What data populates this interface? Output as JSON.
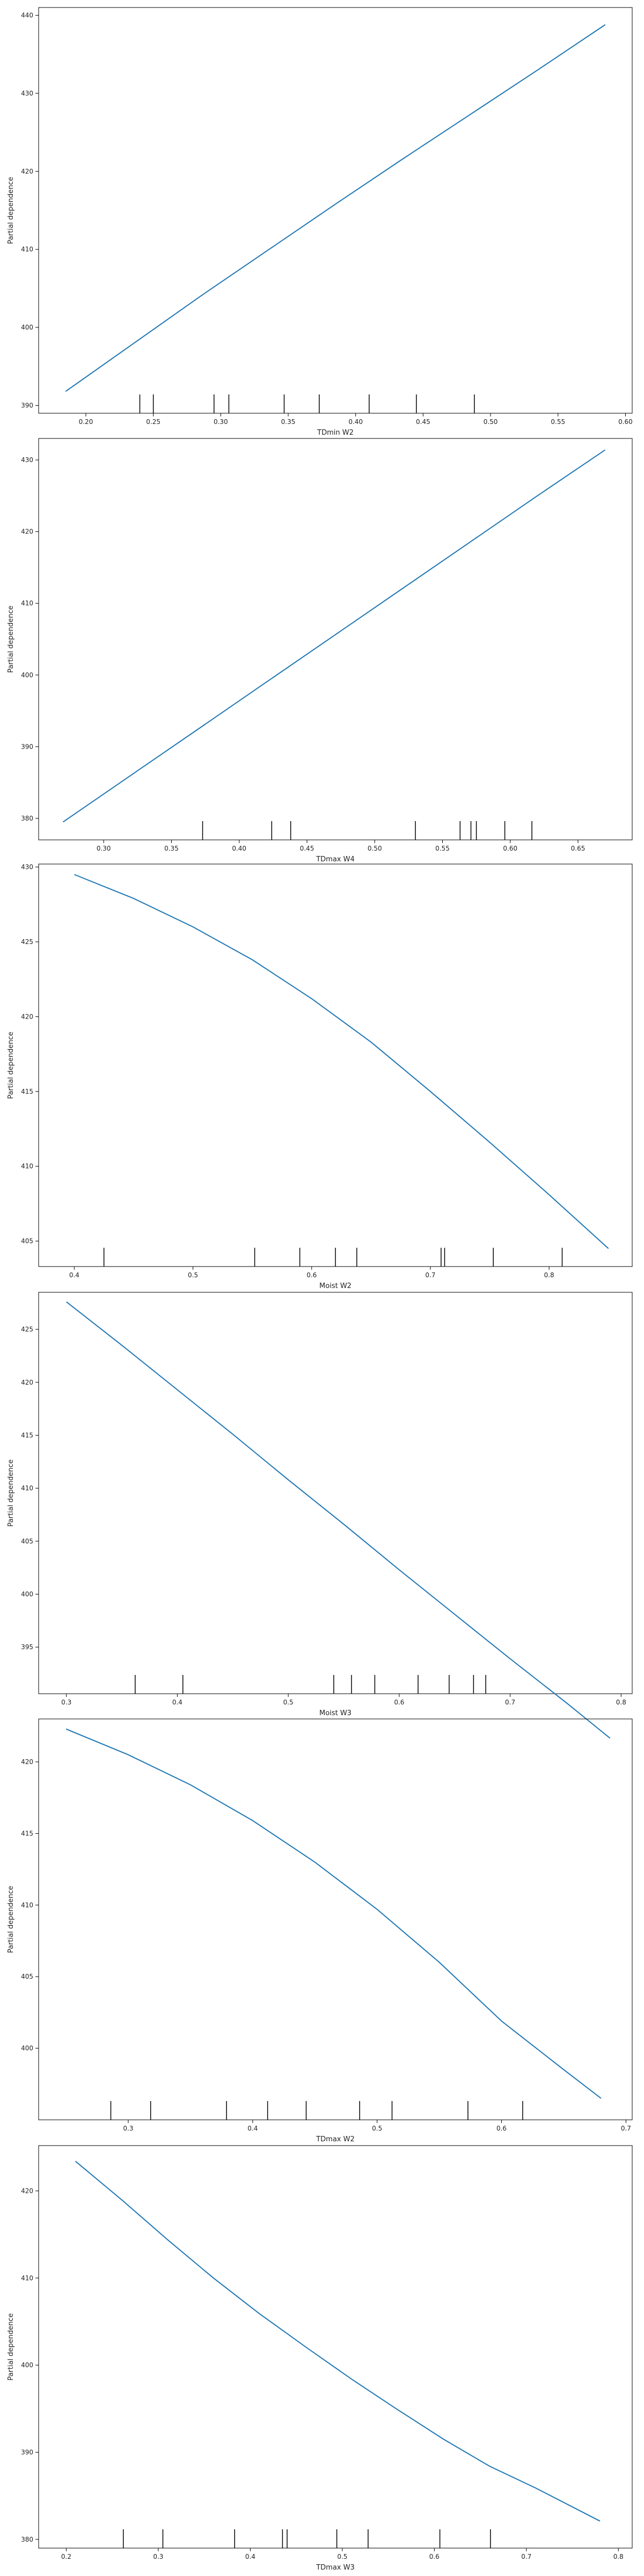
{
  "chart_data": [
    {
      "type": "line",
      "xlabel": "TDmin W2",
      "ylabel": "Partial dependence",
      "xlim": [
        0.165,
        0.605
      ],
      "ylim": [
        389,
        441
      ],
      "xticks": [
        0.2,
        0.25,
        0.3,
        0.35,
        0.4,
        0.45,
        0.5,
        0.55,
        0.6
      ],
      "yticks": [
        390,
        400,
        410,
        420,
        430,
        440
      ],
      "series": [
        {
          "x": [
            0.185,
            0.235,
            0.285,
            0.335,
            0.385,
            0.435,
            0.485,
            0.535,
            0.585
          ],
          "y": [
            391.8,
            397.9,
            404.0,
            409.9,
            415.8,
            421.6,
            427.3,
            433.0,
            438.8
          ]
        }
      ],
      "rug": [
        0.24,
        0.25,
        0.295,
        0.306,
        0.347,
        0.373,
        0.41,
        0.445,
        0.488
      ]
    },
    {
      "type": "line",
      "xlabel": "TDmax W4",
      "ylabel": "Partial dependence",
      "xlim": [
        0.252,
        0.69
      ],
      "ylim": [
        377,
        433
      ],
      "xticks": [
        0.3,
        0.35,
        0.4,
        0.45,
        0.5,
        0.55,
        0.6,
        0.65
      ],
      "yticks": [
        380,
        390,
        400,
        410,
        420,
        430
      ],
      "series": [
        {
          "x": [
            0.27,
            0.32,
            0.37,
            0.42,
            0.47,
            0.52,
            0.57,
            0.62,
            0.67
          ],
          "y": [
            379.5,
            386.0,
            392.5,
            399.0,
            405.5,
            412.0,
            418.5,
            425.0,
            431.4
          ]
        }
      ],
      "rug": [
        0.373,
        0.424,
        0.438,
        0.53,
        0.563,
        0.571,
        0.575,
        0.596,
        0.616
      ]
    },
    {
      "type": "line",
      "xlabel": "Moist W2",
      "ylabel": "Partial dependence",
      "xlim": [
        0.37,
        0.87
      ],
      "ylim": [
        403.3,
        430.2
      ],
      "xticks": [
        0.4,
        0.5,
        0.6,
        0.7,
        0.8
      ],
      "yticks": [
        405,
        410,
        415,
        420,
        425,
        430
      ],
      "series": [
        {
          "x": [
            0.4,
            0.45,
            0.5,
            0.55,
            0.6,
            0.65,
            0.7,
            0.75,
            0.8,
            0.85
          ],
          "y": [
            429.5,
            427.9,
            426.0,
            423.8,
            421.2,
            418.3,
            415.0,
            411.6,
            408.1,
            404.5
          ]
        }
      ],
      "rug": [
        0.425,
        0.552,
        0.59,
        0.62,
        0.638,
        0.709,
        0.712,
        0.753,
        0.811
      ]
    },
    {
      "type": "line",
      "xlabel": "Moist W3",
      "ylabel": "Partial dependence",
      "xlim": [
        0.275,
        0.81
      ],
      "ylim": [
        390.6,
        428.5
      ],
      "xticks": [
        0.3,
        0.4,
        0.5,
        0.6,
        0.7,
        0.8
      ],
      "yticks": [
        395,
        400,
        405,
        410,
        415,
        420,
        425
      ],
      "series": [
        {
          "x": [
            0.3,
            0.35,
            0.4,
            0.45,
            0.5,
            0.55,
            0.6,
            0.65,
            0.7,
            0.75,
            0.79
          ],
          "y": [
            427.6,
            423.5,
            419.3,
            415.1,
            410.8,
            406.6,
            402.3,
            398.1,
            393.9,
            389.8,
            386.4
          ]
        }
      ],
      "rug": [
        0.362,
        0.405,
        0.541,
        0.557,
        0.578,
        0.617,
        0.645,
        0.667,
        0.678
      ]
    },
    {
      "type": "line",
      "xlabel": "TDmax W2",
      "ylabel": "Partial dependence",
      "xlim": [
        0.228,
        0.705
      ],
      "ylim": [
        395,
        423
      ],
      "xticks": [
        0.3,
        0.4,
        0.5,
        0.6,
        0.7
      ],
      "yticks": [
        400,
        405,
        410,
        415,
        420
      ],
      "series": [
        {
          "x": [
            0.25,
            0.3,
            0.35,
            0.4,
            0.45,
            0.5,
            0.55,
            0.6,
            0.65,
            0.68
          ],
          "y": [
            422.3,
            420.5,
            418.4,
            415.9,
            413.0,
            409.7,
            406.0,
            401.9,
            398.5,
            396.5
          ]
        }
      ],
      "rug": [
        0.286,
        0.318,
        0.379,
        0.412,
        0.443,
        0.486,
        0.512,
        0.573,
        0.617
      ]
    },
    {
      "type": "line",
      "xlabel": "TDmax W3",
      "ylabel": "Partial dependence",
      "xlim": [
        0.17,
        0.815
      ],
      "ylim": [
        379,
        425.2
      ],
      "xticks": [
        0.2,
        0.3,
        0.4,
        0.5,
        0.6,
        0.7,
        0.8
      ],
      "yticks": [
        380,
        390,
        400,
        410,
        420
      ],
      "series": [
        {
          "x": [
            0.21,
            0.26,
            0.31,
            0.36,
            0.41,
            0.46,
            0.51,
            0.56,
            0.61,
            0.66,
            0.71,
            0.78
          ],
          "y": [
            423.4,
            419.0,
            414.4,
            410.0,
            405.9,
            402.1,
            398.4,
            394.9,
            391.5,
            388.4,
            385.9,
            382.1
          ]
        }
      ],
      "rug": [
        0.262,
        0.305,
        0.383,
        0.435,
        0.44,
        0.494,
        0.528,
        0.606,
        0.661
      ]
    }
  ],
  "style": {
    "line_color": "#1f77b4",
    "axis_color": "#000000",
    "text_color": "#222222",
    "background": "#ffffff"
  }
}
